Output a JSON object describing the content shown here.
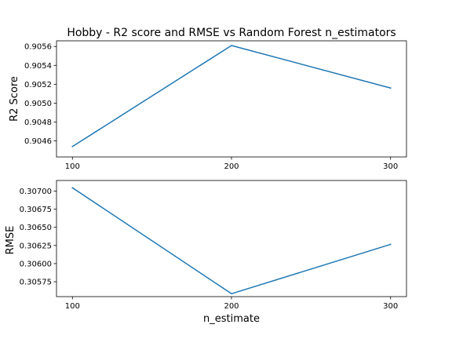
{
  "chart_data": [
    {
      "type": "line",
      "title": "Hobby - R2 score and RMSE vs Random Forest n_estimators",
      "xlabel": "",
      "ylabel": "R2 Score",
      "x": [
        100,
        200,
        300
      ],
      "xticks": [
        "100",
        "200",
        "300"
      ],
      "xlim": [
        90,
        310
      ],
      "ylim": [
        0.90443,
        0.90566
      ],
      "yticks": [
        "0.9046",
        "0.9048",
        "0.9050",
        "0.9052",
        "0.9054",
        "0.9056"
      ],
      "series": [
        {
          "values": [
            0.90454,
            0.90561,
            0.90516
          ],
          "color": "#1f77b4"
        }
      ],
      "grid": false
    },
    {
      "type": "line",
      "title": "",
      "xlabel": "n_estimate",
      "ylabel": "RMSE",
      "x": [
        100,
        200,
        300
      ],
      "xticks": [
        "100",
        "200",
        "300"
      ],
      "xlim": [
        90,
        310
      ],
      "ylim": [
        0.305545,
        0.307145
      ],
      "yticks": [
        "0.30575",
        "0.30600",
        "0.30625",
        "0.30650",
        "0.30675",
        "0.30700"
      ],
      "series": [
        {
          "values": [
            0.307045,
            0.305585,
            0.306265
          ],
          "color": "#1f77b4"
        }
      ],
      "grid": false
    }
  ]
}
